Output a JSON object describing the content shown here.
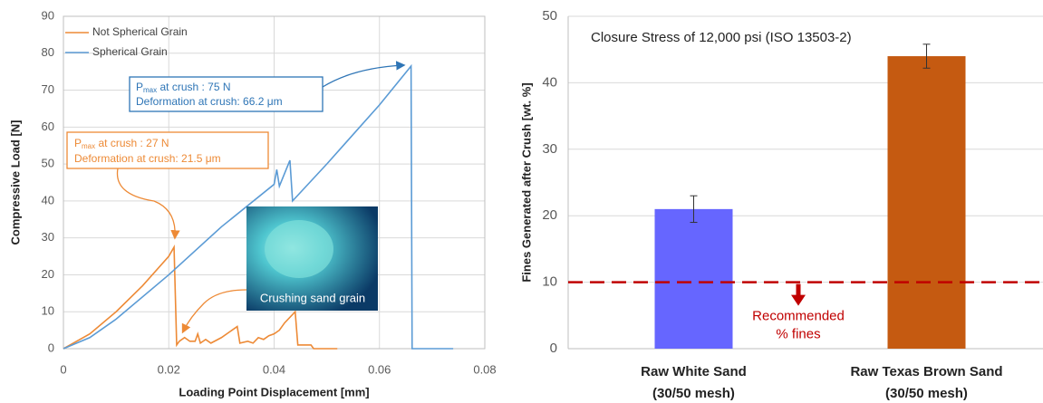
{
  "chart_data": [
    {
      "type": "line",
      "x_label": "Loading Point Displacement [mm]",
      "y_label": "Compressive Load [N]",
      "xlim": [
        0,
        0.08
      ],
      "xticks": [
        0,
        0.02,
        0.04,
        0.06,
        0.08
      ],
      "ylim": [
        0,
        90
      ],
      "yticks": [
        0,
        10,
        20,
        30,
        40,
        50,
        60,
        70,
        80,
        90
      ],
      "grid": true,
      "legend": "upper left",
      "series": [
        {
          "name": "Not Spherical Grain",
          "color": "#ed8a36",
          "x": [
            0,
            0.005,
            0.01,
            0.015,
            0.02,
            0.021,
            0.0215,
            0.022,
            0.023,
            0.024,
            0.025,
            0.0255,
            0.026,
            0.027,
            0.028,
            0.03,
            0.033,
            0.0335,
            0.035,
            0.036,
            0.037,
            0.038,
            0.039,
            0.04,
            0.041,
            0.042,
            0.044,
            0.0445,
            0.046,
            0.047,
            0.0475,
            0.052
          ],
          "values": [
            0,
            4,
            10,
            17,
            25,
            27.5,
            1,
            2,
            3,
            2,
            2,
            4,
            1.5,
            2.5,
            1.5,
            3,
            6,
            1.5,
            2,
            1.5,
            3,
            2.5,
            3.5,
            4,
            5,
            7,
            10,
            1,
            1,
            1,
            0,
            0
          ]
        },
        {
          "name": "Spherical Grain",
          "color": "#5b9bd5",
          "x": [
            0,
            0.005,
            0.01,
            0.02,
            0.03,
            0.04,
            0.0405,
            0.041,
            0.043,
            0.0435,
            0.05,
            0.06,
            0.066,
            0.0662,
            0.074
          ],
          "values": [
            0,
            3,
            8,
            20,
            33,
            44.5,
            48.5,
            44,
            51,
            40,
            50,
            66,
            76.5,
            0,
            0
          ]
        }
      ],
      "annotations": {
        "spherical": {
          "p": "P",
          "sub": "max",
          "rest": " at crush : 75 N",
          "line2": "Deformation at crush: 66.2 μm"
        },
        "not_spherical": {
          "p": "P",
          "sub": "max",
          "rest": " at crush : 27 N",
          "line2": "Deformation at crush: 21.5 μm"
        },
        "image_caption": "Crushing sand grain"
      }
    },
    {
      "type": "bar",
      "annotation": "Closure Stress of 12,000 psi  (ISO 13503-2)",
      "y_label": "Fines Generated after Crush [wt. %]",
      "categories": [
        [
          "Raw White Sand",
          "(30/50 mesh)"
        ],
        [
          "Raw Texas Brown Sand",
          "(30/50 mesh)"
        ]
      ],
      "values": [
        21,
        44
      ],
      "errors": [
        2,
        1.8
      ],
      "colors": [
        "#6666ff",
        "#c55a11"
      ],
      "ylim": [
        0,
        50
      ],
      "yticks": [
        0,
        10,
        20,
        30,
        40,
        50
      ],
      "grid": true,
      "reference_line": {
        "value": 10,
        "color": "#c00000",
        "label": [
          "Recommended",
          "% fines"
        ]
      }
    }
  ]
}
